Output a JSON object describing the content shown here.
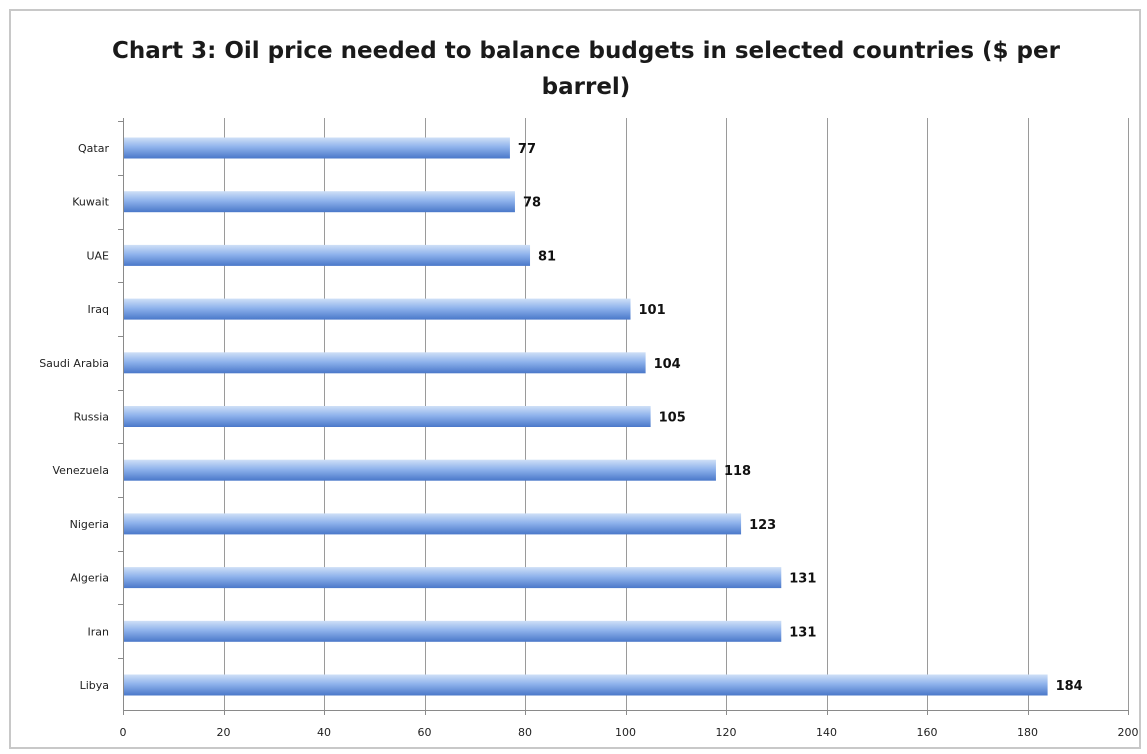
{
  "chart_data": {
    "type": "bar",
    "orientation": "horizontal",
    "title": "Chart 3: Oil price needed to balance budgets in selected countries ($ per barrel)",
    "categories": [
      "Qatar",
      "Kuwait",
      "UAE",
      "Iraq",
      "Saudi Arabia",
      "Russia",
      "Venezuela",
      "Nigeria",
      "Algeria",
      "Iran",
      "Libya"
    ],
    "values": [
      77,
      78,
      81,
      101,
      104,
      105,
      118,
      123,
      131,
      131,
      184
    ],
    "data_labels": [
      "77",
      "78",
      "81",
      "101",
      "104",
      "105",
      "118",
      "123",
      "131",
      "131",
      "184"
    ],
    "xlim": [
      0,
      200
    ],
    "x_ticks": [
      0,
      20,
      40,
      60,
      80,
      100,
      120,
      140,
      160,
      180,
      200
    ],
    "x_tick_labels": [
      "0",
      "20",
      "40",
      "60",
      "80",
      "100",
      "120",
      "140",
      "160",
      "180",
      "200"
    ],
    "grid": "vertical",
    "legend": "none",
    "colors": {
      "bar_top": "#cfe0f7",
      "bar_mid": "#8fb3ec",
      "bar_bottom": "#4a78c9",
      "grid": "#9a9a9a",
      "axis": "#8a8a8a"
    }
  }
}
